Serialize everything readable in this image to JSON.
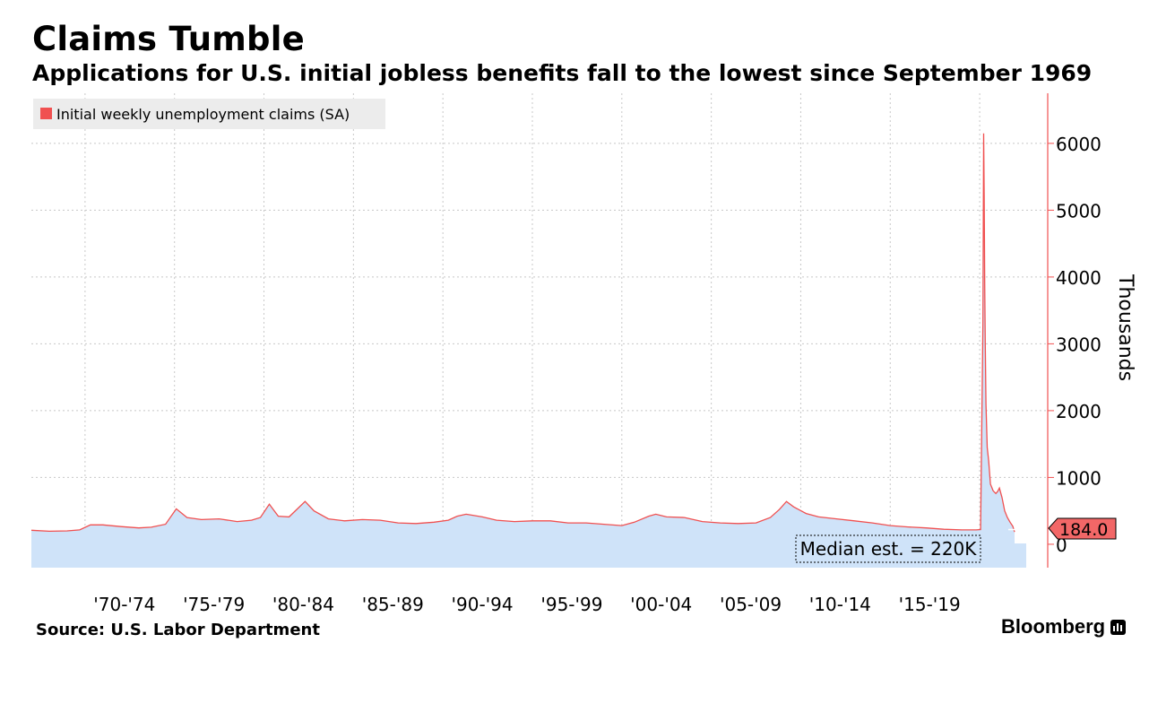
{
  "title": "Claims Tumble",
  "subtitle": "Applications for U.S. initial jobless benefits fall to the lowest since September 1969",
  "source": "Source: U.S. Labor Department",
  "brand": "Bloomberg",
  "colors": {
    "line": "#f05050",
    "fill": "#cfe3f9",
    "tag_bg": "#f26767",
    "grid": "#c8c8c8"
  },
  "chart_data": {
    "type": "area",
    "legend": "Initial weekly unemployment claims (SA)",
    "ylabel": "Thousands",
    "ylim": [
      -350,
      6750
    ],
    "yticks": [
      0,
      1000,
      2000,
      3000,
      4000,
      5000,
      6000
    ],
    "xlim": [
      1967.0,
      2022.6
    ],
    "xticks": [
      {
        "label": "'70-'74",
        "x": 1972.2
      },
      {
        "label": "'75-'79",
        "x": 1977.2
      },
      {
        "label": "'80-'84",
        "x": 1982.2
      },
      {
        "label": "'85-'89",
        "x": 1987.2
      },
      {
        "label": "'90-'94",
        "x": 1992.2
      },
      {
        "label": "'95-'99",
        "x": 1997.2
      },
      {
        "label": "'00-'04",
        "x": 2002.2
      },
      {
        "label": "'05-'09",
        "x": 2007.2
      },
      {
        "label": "'10-'14",
        "x": 2012.2
      },
      {
        "label": "'15-'19",
        "x": 2017.2
      }
    ],
    "last_value_label": "184.0",
    "annotation": "Median est. = 220K",
    "annotation_value": 220,
    "series": [
      {
        "name": "Initial weekly unemployment claims (SA)",
        "x": [
          1967.0,
          1968.0,
          1969.0,
          1969.7,
          1970.3,
          1971.0,
          1972.0,
          1973.0,
          1973.7,
          1974.5,
          1975.1,
          1975.7,
          1976.5,
          1977.5,
          1978.5,
          1979.3,
          1979.8,
          1980.3,
          1980.8,
          1981.4,
          1982.3,
          1982.8,
          1983.6,
          1984.5,
          1985.5,
          1986.5,
          1987.5,
          1988.5,
          1989.5,
          1990.3,
          1990.8,
          1991.3,
          1992.2,
          1993.0,
          1994.0,
          1995.0,
          1996.0,
          1997.0,
          1998.0,
          1999.0,
          2000.0,
          2000.7,
          2001.5,
          2001.9,
          2002.5,
          2003.5,
          2004.5,
          2005.5,
          2006.5,
          2007.5,
          2008.3,
          2008.8,
          2009.2,
          2009.6,
          2010.3,
          2011.0,
          2012.0,
          2013.0,
          2014.0,
          2015.0,
          2016.0,
          2017.0,
          2018.0,
          2019.0,
          2019.8,
          2020.05,
          2020.18,
          2020.22,
          2020.25,
          2020.28,
          2020.31,
          2020.35,
          2020.42,
          2020.5,
          2020.6,
          2020.75,
          2020.9,
          2021.0,
          2021.1,
          2021.25,
          2021.4,
          2021.55,
          2021.7,
          2021.85,
          2021.95
        ],
        "y": [
          210,
          195,
          200,
          215,
          290,
          290,
          265,
          245,
          255,
          300,
          530,
          400,
          370,
          380,
          340,
          360,
          400,
          600,
          420,
          410,
          640,
          500,
          380,
          350,
          370,
          360,
          320,
          310,
          330,
          360,
          420,
          450,
          410,
          360,
          340,
          350,
          350,
          320,
          320,
          300,
          280,
          330,
          420,
          450,
          410,
          400,
          340,
          320,
          310,
          320,
          400,
          520,
          640,
          560,
          460,
          410,
          380,
          350,
          320,
          280,
          260,
          245,
          225,
          215,
          215,
          220,
          3300,
          6150,
          5200,
          3900,
          3000,
          2100,
          1450,
          1250,
          900,
          800,
          760,
          790,
          840,
          700,
          500,
          400,
          330,
          270,
          184
        ]
      }
    ]
  }
}
